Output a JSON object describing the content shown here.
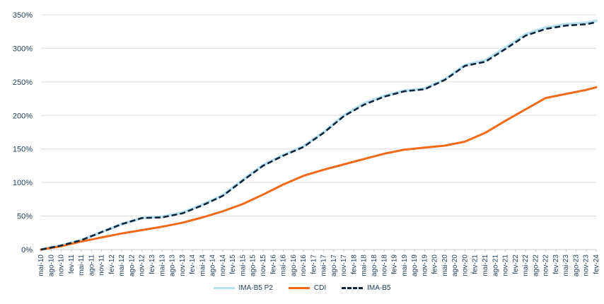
{
  "chart_data": {
    "type": "line",
    "title": "",
    "xlabel": "",
    "ylabel": "",
    "ylim": [
      0,
      350
    ],
    "yticks": [
      0,
      50,
      100,
      150,
      200,
      250,
      300,
      350
    ],
    "ytick_labels": [
      "0%",
      "50%",
      "100%",
      "150%",
      "200%",
      "250%",
      "300%",
      "350%"
    ],
    "x_tick_labels": [
      "mai-10",
      "ago-10",
      "nov-10",
      "fev-11",
      "mai-11",
      "ago-11",
      "nov-11",
      "fev-12",
      "mai-12",
      "ago-12",
      "nov-12",
      "fev-13",
      "mai-13",
      "ago-13",
      "nov-13",
      "fev-14",
      "mai-14",
      "ago-14",
      "nov-14",
      "fev-15",
      "mai-15",
      "ago-15",
      "nov-15",
      "fev-16",
      "mai-16",
      "ago-16",
      "nov-16",
      "fev-17",
      "mai-17",
      "ago-17",
      "nov-17",
      "fev-18",
      "mai-18",
      "ago-18",
      "nov-18",
      "fev-19",
      "mai-19",
      "ago-19",
      "nov-19",
      "fev-20",
      "mai-20",
      "ago-20",
      "nov-20",
      "fev-21",
      "mai-21",
      "ago-21",
      "nov-21",
      "fev-22",
      "mai-22",
      "ago-22",
      "nov-22",
      "fev-23",
      "mai-23",
      "ago-23",
      "nov-23",
      "fev-24"
    ],
    "x_range": [
      0,
      165
    ],
    "series": [
      {
        "name": "IMA-B5 P2",
        "color": "#b9e2ef",
        "style": "solid",
        "x": [
          0,
          6,
          12,
          18,
          24,
          30,
          36,
          42,
          48,
          54,
          60,
          66,
          72,
          78,
          84,
          90,
          96,
          102,
          108,
          114,
          120,
          126,
          132,
          138,
          144,
          150,
          156,
          162,
          165
        ],
        "values": [
          0,
          6,
          14,
          26,
          38,
          47,
          49,
          55,
          67,
          81,
          104,
          126,
          141,
          154,
          175,
          200,
          218,
          229,
          237,
          240,
          254,
          275,
          282,
          301,
          321,
          331,
          336,
          338,
          341
        ]
      },
      {
        "name": "CDI",
        "color": "#f26a18",
        "style": "solid",
        "x": [
          0,
          6,
          12,
          18,
          24,
          30,
          36,
          42,
          48,
          54,
          60,
          66,
          72,
          78,
          84,
          90,
          96,
          102,
          108,
          114,
          120,
          126,
          132,
          138,
          144,
          150,
          156,
          162,
          165
        ],
        "values": [
          0,
          5,
          12,
          18,
          24,
          29,
          34,
          40,
          48,
          57,
          68,
          82,
          97,
          110,
          119,
          127,
          135,
          143,
          149,
          152,
          155,
          161,
          174,
          192,
          209,
          226,
          232,
          238,
          242
        ]
      },
      {
        "name": "IMA-B5",
        "color": "#10243a",
        "style": "dashed",
        "x": [
          0,
          6,
          12,
          18,
          24,
          30,
          36,
          42,
          48,
          54,
          60,
          66,
          72,
          78,
          84,
          90,
          96,
          102,
          108,
          114,
          120,
          126,
          132,
          138,
          144,
          150,
          156,
          162,
          165
        ],
        "values": [
          0,
          6,
          14,
          26,
          38,
          47,
          48,
          54,
          66,
          80,
          103,
          125,
          140,
          153,
          174,
          199,
          216,
          228,
          236,
          239,
          253,
          274,
          280,
          299,
          319,
          329,
          334,
          336,
          339
        ]
      }
    ]
  }
}
